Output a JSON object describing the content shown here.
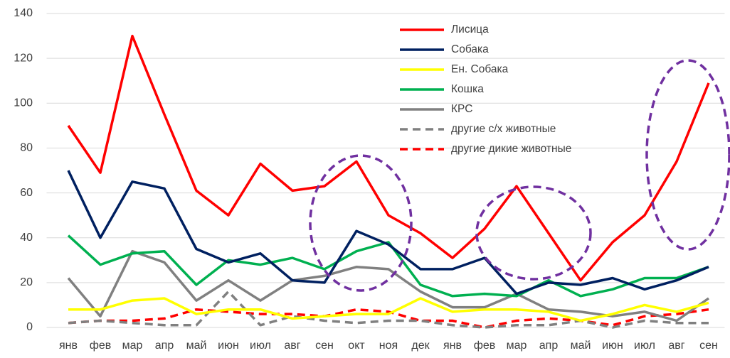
{
  "chart_data": {
    "type": "line",
    "categories": [
      "янв",
      "фев",
      "мар",
      "апр",
      "май",
      "июн",
      "июл",
      "авг",
      "сен",
      "окт",
      "ноя",
      "дек",
      "янв",
      "фев",
      "мар",
      "апр",
      "май",
      "июн",
      "июл",
      "авг",
      "сен"
    ],
    "series": [
      {
        "name": "Лисица",
        "color": "#ff0000",
        "style": "solid",
        "values": [
          90,
          69,
          130,
          95,
          61,
          50,
          73,
          61,
          63,
          74,
          50,
          42,
          31,
          44,
          63,
          42,
          21,
          38,
          50,
          74,
          109
        ]
      },
      {
        "name": "Собака",
        "color": "#002060",
        "style": "solid",
        "values": [
          70,
          40,
          65,
          62,
          35,
          29,
          33,
          21,
          20,
          43,
          37,
          26,
          26,
          31,
          15,
          20,
          19,
          22,
          17,
          21,
          27
        ]
      },
      {
        "name": "Ен. Собака",
        "color": "#ffff00",
        "style": "solid",
        "values": [
          8,
          8,
          12,
          13,
          6,
          8,
          8,
          4,
          5,
          6,
          6,
          13,
          7,
          8,
          8,
          7,
          3,
          6,
          10,
          7,
          11
        ]
      },
      {
        "name": "Кошка",
        "color": "#00b050",
        "style": "solid",
        "values": [
          41,
          28,
          33,
          34,
          19,
          30,
          28,
          31,
          26,
          34,
          38,
          19,
          14,
          15,
          14,
          21,
          14,
          17,
          22,
          22,
          27
        ]
      },
      {
        "name": "КРС",
        "color": "#808080",
        "style": "solid",
        "values": [
          22,
          5,
          34,
          29,
          12,
          21,
          12,
          21,
          23,
          27,
          26,
          16,
          9,
          9,
          15,
          8,
          7,
          5,
          7,
          3,
          13
        ]
      },
      {
        "name": "другие с/х животные",
        "color": "#808080",
        "style": "dashed",
        "values": [
          2,
          3,
          2,
          1,
          1,
          16,
          1,
          5,
          3,
          2,
          3,
          3,
          1,
          0,
          1,
          1,
          3,
          0,
          3,
          2,
          2
        ]
      },
      {
        "name": "другие дикие животные",
        "color": "#ff0000",
        "style": "dashed",
        "values": [
          2,
          3,
          3,
          4,
          8,
          7,
          6,
          6,
          5,
          8,
          7,
          3,
          3,
          0,
          3,
          4,
          3,
          1,
          5,
          6,
          8
        ]
      }
    ],
    "ylim": [
      0,
      140
    ],
    "yticks": [
      0,
      20,
      40,
      60,
      80,
      100,
      120,
      140
    ],
    "grid": true,
    "legend": "upper-center"
  }
}
